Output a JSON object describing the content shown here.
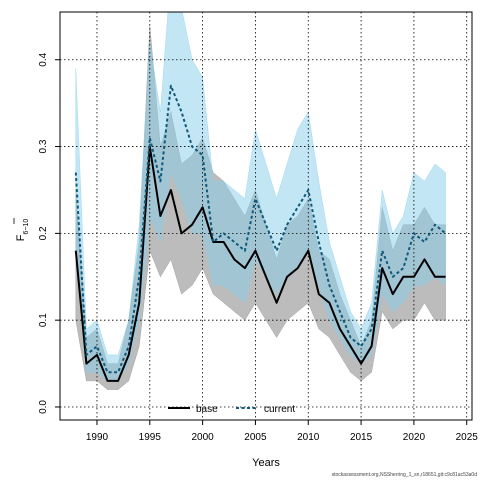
{
  "chart_data": {
    "type": "line",
    "xlabel": "Years",
    "ylabel": "F",
    "ylabel_sub": "6−10",
    "xlim": [
      1986.5,
      2025.5
    ],
    "ylim": [
      -0.015,
      0.455
    ],
    "x_ticks": [
      1990,
      1995,
      2000,
      2005,
      2010,
      2015,
      2020,
      2025
    ],
    "y_ticks": [
      0.0,
      0.1,
      0.2,
      0.3,
      0.4
    ],
    "y_tick_labels": [
      "0.0",
      "0.1",
      "0.2",
      "0.3",
      "0.4"
    ],
    "grid": true,
    "legend": "bottom-left",
    "footer": "stockassessment.org,NSSherring_1_sn,r18651,git:c9c81ac53a0d",
    "x": [
      1988,
      1989,
      1990,
      1991,
      1992,
      1993,
      1994,
      1995,
      1996,
      1997,
      1998,
      1999,
      2000,
      2001,
      2002,
      2003,
      2004,
      2005,
      2006,
      2007,
      2008,
      2009,
      2010,
      2011,
      2012,
      2013,
      2014,
      2015,
      2016,
      2017,
      2018,
      2019,
      2020,
      2021,
      2022,
      2023
    ],
    "series": [
      {
        "name": "base",
        "color": "#000000",
        "band_color": "#8f8f8f",
        "values": [
          0.18,
          0.05,
          0.06,
          0.03,
          0.03,
          0.06,
          0.12,
          0.3,
          0.22,
          0.25,
          0.2,
          0.21,
          0.23,
          0.19,
          0.19,
          0.17,
          0.16,
          0.18,
          0.15,
          0.12,
          0.15,
          0.16,
          0.18,
          0.13,
          0.12,
          0.09,
          0.07,
          0.05,
          0.07,
          0.16,
          0.13,
          0.15,
          0.15,
          0.17,
          0.15,
          0.15
        ],
        "lower": [
          0.1,
          0.03,
          0.03,
          0.02,
          0.02,
          0.03,
          0.07,
          0.18,
          0.15,
          0.17,
          0.13,
          0.14,
          0.16,
          0.13,
          0.12,
          0.11,
          0.1,
          0.12,
          0.1,
          0.08,
          0.1,
          0.11,
          0.12,
          0.09,
          0.08,
          0.06,
          0.04,
          0.03,
          0.04,
          0.11,
          0.09,
          0.1,
          0.1,
          0.12,
          0.1,
          0.1
        ],
        "upper": [
          0.25,
          0.08,
          0.09,
          0.05,
          0.05,
          0.1,
          0.19,
          0.44,
          0.3,
          0.34,
          0.28,
          0.29,
          0.31,
          0.27,
          0.26,
          0.24,
          0.22,
          0.25,
          0.21,
          0.17,
          0.21,
          0.22,
          0.24,
          0.18,
          0.17,
          0.13,
          0.1,
          0.07,
          0.1,
          0.23,
          0.18,
          0.21,
          0.21,
          0.23,
          0.21,
          0.21
        ]
      },
      {
        "name": "current",
        "color": "#0d5a7a",
        "band_color": "#87ceeb",
        "values": [
          0.27,
          0.06,
          0.07,
          0.04,
          0.04,
          0.07,
          0.15,
          0.31,
          0.26,
          0.37,
          0.34,
          0.3,
          0.29,
          0.19,
          0.2,
          0.19,
          0.18,
          0.24,
          0.21,
          0.18,
          0.21,
          0.23,
          0.25,
          0.19,
          0.14,
          0.11,
          0.08,
          0.07,
          0.09,
          0.18,
          0.15,
          0.16,
          0.2,
          0.19,
          0.21,
          0.2
        ],
        "lower": [
          0.17,
          0.04,
          0.04,
          0.03,
          0.03,
          0.05,
          0.1,
          0.22,
          0.19,
          0.27,
          0.24,
          0.2,
          0.2,
          0.14,
          0.14,
          0.13,
          0.12,
          0.17,
          0.15,
          0.13,
          0.15,
          0.16,
          0.18,
          0.14,
          0.1,
          0.08,
          0.06,
          0.05,
          0.06,
          0.13,
          0.11,
          0.12,
          0.14,
          0.14,
          0.15,
          0.14
        ],
        "upper": [
          0.39,
          0.09,
          0.1,
          0.06,
          0.06,
          0.1,
          0.21,
          0.42,
          0.34,
          0.5,
          0.46,
          0.4,
          0.38,
          0.26,
          0.26,
          0.25,
          0.24,
          0.32,
          0.28,
          0.24,
          0.28,
          0.32,
          0.34,
          0.26,
          0.19,
          0.15,
          0.11,
          0.09,
          0.12,
          0.25,
          0.2,
          0.22,
          0.27,
          0.26,
          0.28,
          0.27
        ]
      }
    ]
  }
}
